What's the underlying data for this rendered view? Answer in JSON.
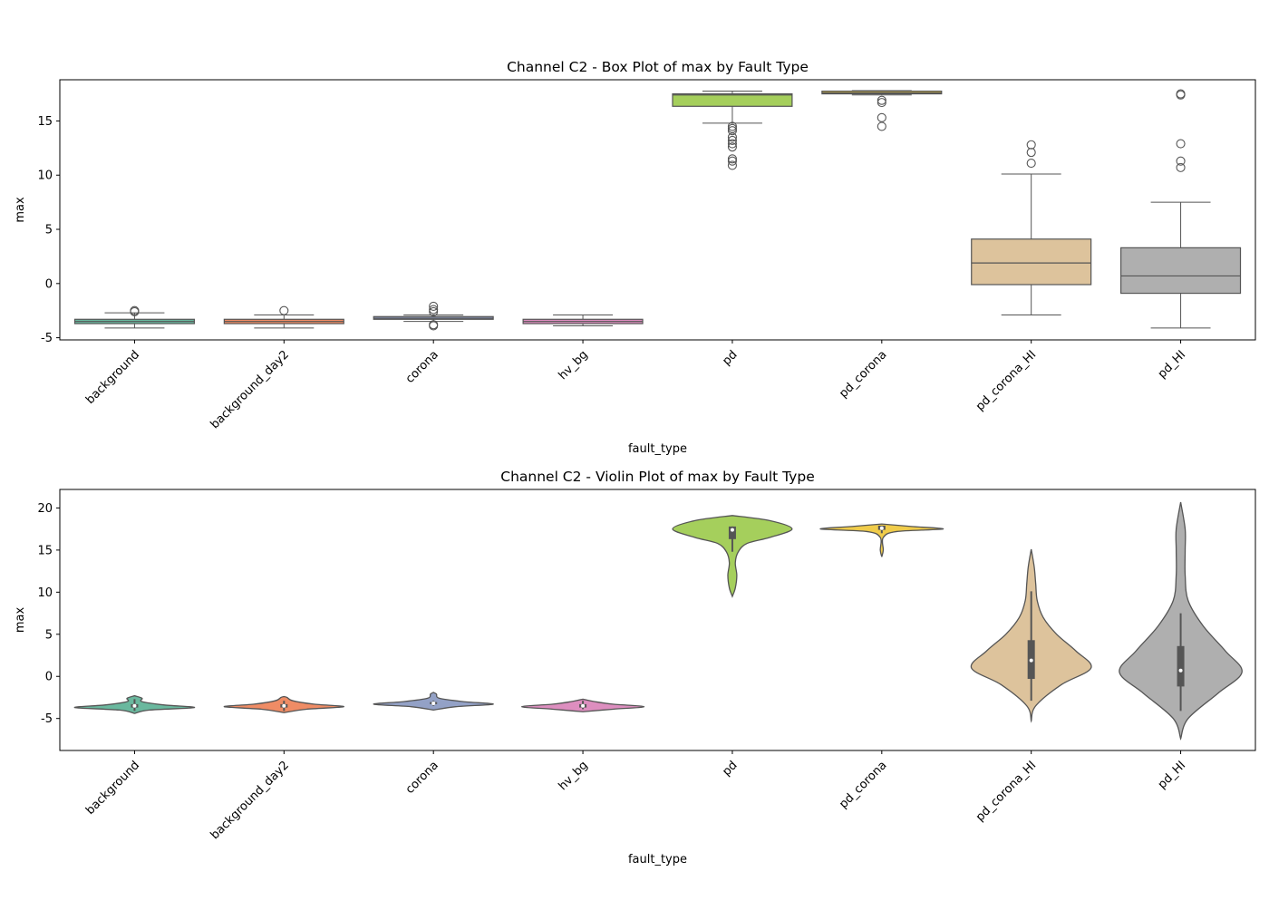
{
  "chart_data": [
    {
      "type": "box",
      "title": "Channel C2 - Box Plot of max by Fault Type",
      "xlabel": "fault_type",
      "ylabel": "max",
      "categories": [
        "background",
        "background_day2",
        "corona",
        "hv_bg",
        "pd",
        "pd_corona",
        "pd_corona_HI",
        "pd_HI"
      ],
      "colors": [
        "#6ab89e",
        "#ef8c65",
        "#93a1c6",
        "#dd8ebf",
        "#a5cf5c",
        "#f0cc4a",
        "#ddc39c",
        "#afafaf"
      ],
      "ylim": [
        -5.2,
        18.8
      ],
      "yticks": [
        -5,
        0,
        5,
        10,
        15
      ],
      "boxes": [
        {
          "whislo": -4.1,
          "q1": -3.7,
          "med": -3.5,
          "q3": -3.3,
          "whishi": -2.7,
          "fliers": [
            -2.5,
            -2.6
          ]
        },
        {
          "whislo": -4.1,
          "q1": -3.7,
          "med": -3.5,
          "q3": -3.3,
          "whishi": -2.9,
          "fliers": [
            -2.5
          ]
        },
        {
          "whislo": -3.5,
          "q1": -3.3,
          "med": -3.2,
          "q3": -3.05,
          "whishi": -2.9,
          "fliers": [
            -2.1,
            -2.4,
            -2.6,
            -3.8,
            -3.9
          ]
        },
        {
          "whislo": -3.9,
          "q1": -3.7,
          "med": -3.5,
          "q3": -3.3,
          "whishi": -2.9,
          "fliers": []
        },
        {
          "whislo": 14.8,
          "q1": 16.35,
          "med": 17.4,
          "q3": 17.5,
          "whishi": 17.75,
          "fliers": [
            14.5,
            14.3,
            14.1,
            13.5,
            13.2,
            12.9,
            12.6,
            11.5,
            11.3,
            10.9
          ]
        },
        {
          "whislo": 17.4,
          "q1": 17.5,
          "med": 17.6,
          "q3": 17.75,
          "whishi": 17.8,
          "fliers": [
            16.9,
            16.7,
            15.3,
            14.5
          ]
        },
        {
          "whislo": -2.9,
          "q1": -0.1,
          "med": 1.9,
          "q3": 4.1,
          "whishi": 10.1,
          "fliers": [
            11.1,
            12.1,
            12.8
          ]
        },
        {
          "whislo": -4.1,
          "q1": -0.9,
          "med": 0.7,
          "q3": 3.3,
          "whishi": 7.5,
          "fliers": [
            10.7,
            11.3,
            12.9,
            17.4,
            17.5
          ]
        }
      ]
    },
    {
      "type": "violin",
      "title": "Channel C2 - Violin Plot of max by Fault Type",
      "xlabel": "fault_type",
      "ylabel": "max",
      "categories": [
        "background",
        "background_day2",
        "corona",
        "hv_bg",
        "pd",
        "pd_corona",
        "pd_corona_HI",
        "pd_HI"
      ],
      "colors": [
        "#6ab89e",
        "#ef8c65",
        "#93a1c6",
        "#dd8ebf",
        "#a5cf5c",
        "#f0cc4a",
        "#ddc39c",
        "#afafaf"
      ],
      "ylim": [
        -8.8,
        22.2
      ],
      "yticks": [
        -5,
        0,
        5,
        10,
        15,
        20
      ],
      "violins": [
        {
          "kde_y": [
            -4.4,
            -4.0,
            -3.7,
            -3.4,
            -3.0,
            -2.6,
            -2.3
          ],
          "kde_width": [
            0,
            0.1,
            0.4,
            0.2,
            0.05,
            0.05,
            0
          ],
          "whislo": -4.1,
          "q1": -3.7,
          "med": -3.5,
          "q3": -3.3,
          "whishi": -2.7
        },
        {
          "kde_y": [
            -4.3,
            -3.9,
            -3.6,
            -3.3,
            -2.9,
            -2.5,
            -2.4
          ],
          "kde_width": [
            0,
            0.15,
            0.4,
            0.2,
            0.06,
            0.02,
            0
          ],
          "whislo": -4.1,
          "q1": -3.7,
          "med": -3.5,
          "q3": -3.3,
          "whishi": -2.9
        },
        {
          "kde_y": [
            -4.0,
            -3.6,
            -3.3,
            -3.0,
            -2.6,
            -2.1,
            -1.9
          ],
          "kde_width": [
            0,
            0.15,
            0.4,
            0.2,
            0.04,
            0.02,
            0
          ],
          "whislo": -3.5,
          "q1": -3.3,
          "med": -3.2,
          "q3": -3.05,
          "whishi": -2.9
        },
        {
          "kde_y": [
            -4.2,
            -3.9,
            -3.6,
            -3.3,
            -3.0,
            -2.7
          ],
          "kde_width": [
            0,
            0.2,
            0.41,
            0.2,
            0.08,
            0
          ],
          "whislo": -3.9,
          "q1": -3.7,
          "med": -3.5,
          "q3": -3.3,
          "whishi": -2.9
        },
        {
          "kde_y": [
            9.5,
            10.5,
            12,
            13.5,
            14.8,
            15.8,
            16.5,
            17.5,
            18.5,
            19.1
          ],
          "kde_width": [
            0,
            0.02,
            0.03,
            0.02,
            0.04,
            0.1,
            0.25,
            0.4,
            0.25,
            0
          ],
          "whislo": 14.8,
          "q1": 16.3,
          "med": 17.4,
          "q3": 17.8,
          "whishi": 17.8
        },
        {
          "kde_y": [
            14.2,
            15,
            16.5,
            17.2,
            17.5,
            17.8,
            18.1
          ],
          "kde_width": [
            0,
            0.01,
            0.01,
            0.1,
            0.41,
            0.2,
            0
          ],
          "whislo": 17.0,
          "q1": 17.4,
          "med": 17.6,
          "q3": 17.9,
          "whishi": 17.9
        },
        {
          "kde_y": [
            -5.3,
            -3.5,
            -1,
            1,
            3,
            5,
            7,
            9,
            11,
            13,
            15.1
          ],
          "kde_width": [
            0,
            0.03,
            0.2,
            0.4,
            0.3,
            0.17,
            0.08,
            0.04,
            0.03,
            0.02,
            0
          ],
          "whislo": -2.9,
          "q1": -0.3,
          "med": 1.9,
          "q3": 4.3,
          "whishi": 10.1
        },
        {
          "kde_y": [
            -7.4,
            -5,
            -2,
            0.5,
            3,
            6,
            9,
            12,
            15,
            17.5,
            20.7
          ],
          "kde_width": [
            0,
            0.05,
            0.25,
            0.41,
            0.3,
            0.15,
            0.05,
            0.03,
            0.03,
            0.03,
            0
          ],
          "whislo": -4.1,
          "q1": -1.2,
          "med": 0.7,
          "q3": 3.6,
          "whishi": 7.5
        }
      ]
    }
  ]
}
